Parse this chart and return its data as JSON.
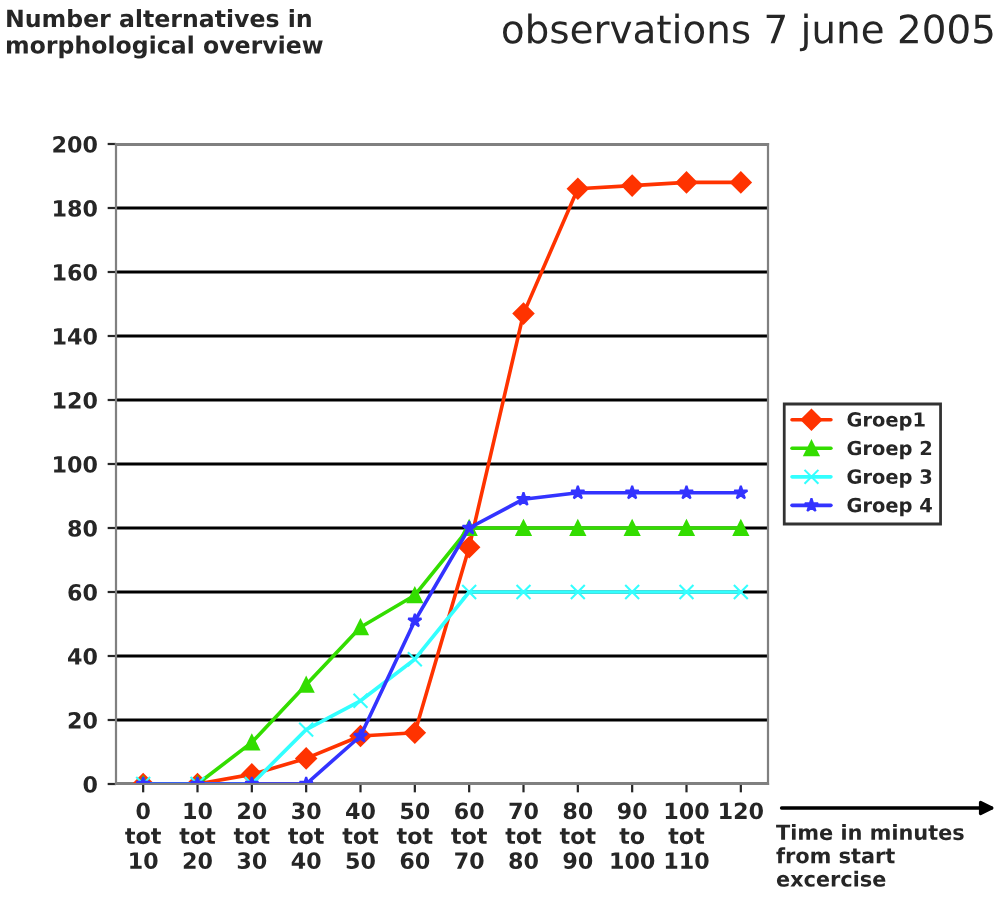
{
  "chart_data": {
    "type": "line",
    "title": "observations 7 june 2005",
    "ylabel": "Number alternatives in morphological overview",
    "xlabel": "Time in minutes from start excercise",
    "categories": [
      "0\ntot\n10",
      "10\ntot\n20",
      "20\ntot\n30",
      "30\ntot\n40",
      "40\ntot\n50",
      "50\ntot\n60",
      "60\ntot\n70",
      "70\ntot\n80",
      "80\ntot\n90",
      "90\nto\n100",
      "100\ntot\n110",
      "120"
    ],
    "series": [
      {
        "name": "Groep1",
        "color": "#ff3300",
        "marker": "diamond",
        "values": [
          0,
          0,
          3,
          8,
          15,
          16,
          74,
          147,
          186,
          187,
          188,
          188
        ]
      },
      {
        "name": "Groep 2",
        "color": "#33dd00",
        "marker": "triangle",
        "values": [
          0,
          0,
          13,
          31,
          49,
          59,
          80,
          80,
          80,
          80,
          80,
          80
        ]
      },
      {
        "name": "Groep 3",
        "color": "#33ffff",
        "marker": "cross",
        "values": [
          0,
          0,
          0,
          17,
          26,
          39,
          60,
          60,
          60,
          60,
          60,
          60
        ]
      },
      {
        "name": "Groep 4",
        "color": "#3333ff",
        "marker": "star",
        "values": [
          0,
          0,
          0,
          0,
          15,
          51,
          80,
          89,
          91,
          91,
          91,
          91
        ]
      }
    ],
    "ylim": [
      0,
      200
    ],
    "yticks": [
      0,
      20,
      40,
      60,
      80,
      100,
      120,
      140,
      160,
      180,
      200
    ],
    "grid": "y",
    "legend": "right",
    "line_style": "solid"
  }
}
